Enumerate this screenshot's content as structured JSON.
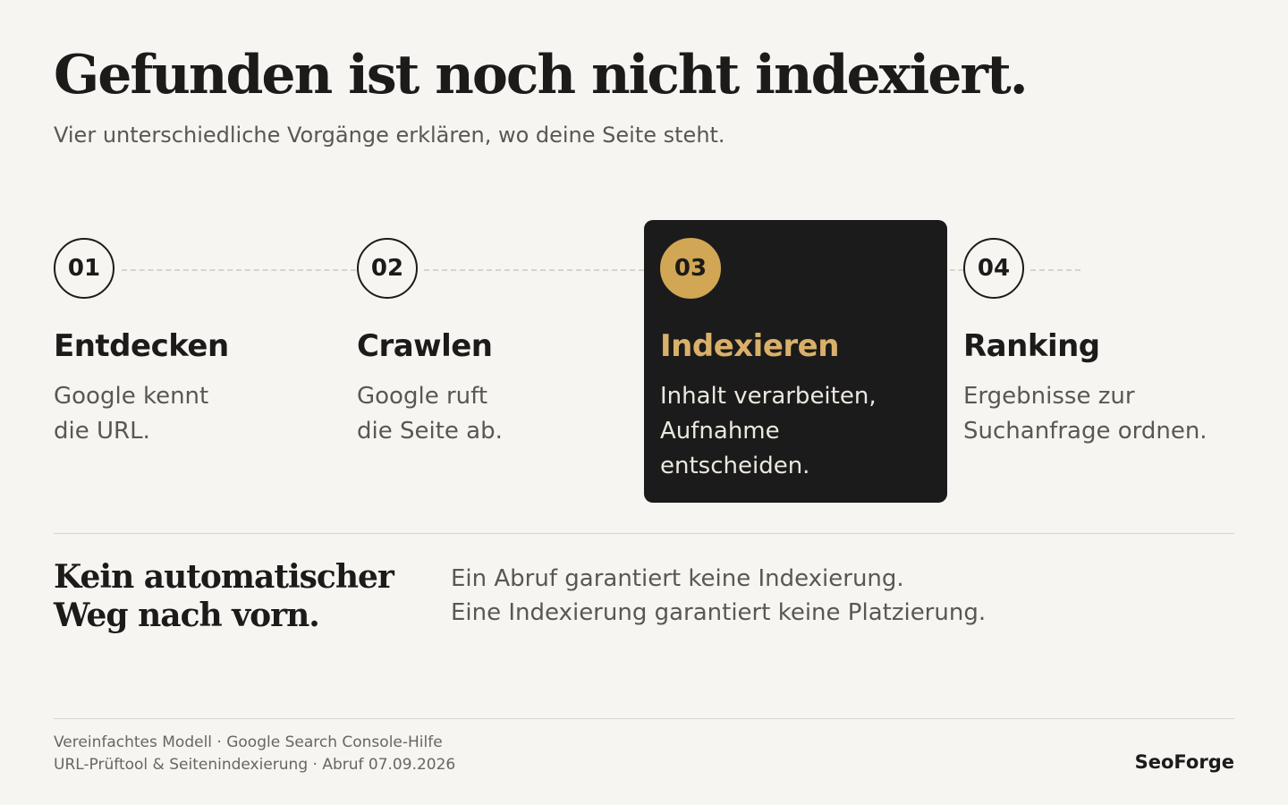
{
  "header": {
    "title": "Gefunden ist noch nicht indexiert.",
    "subtitle": "Vier unterschiedliche Vorgänge erklären, wo deine Seite steht."
  },
  "steps": [
    {
      "number": "01",
      "title": "Entdecken",
      "desc_lines": [
        "Google kennt",
        "die URL."
      ],
      "active": false
    },
    {
      "number": "02",
      "title": "Crawlen",
      "desc_lines": [
        "Google ruft",
        "die Seite ab."
      ],
      "active": false
    },
    {
      "number": "03",
      "title": "Indexieren",
      "desc_lines": [
        "Inhalt verarbeiten,",
        "Aufnahme",
        "entscheiden."
      ],
      "active": true
    },
    {
      "number": "04",
      "title": "Ranking",
      "desc_lines": [
        "Ergebnisse zur",
        "Suchanfrage ordnen."
      ],
      "active": false
    }
  ],
  "conclusion": {
    "title_lines": [
      "Kein automatischer",
      "Weg nach vorn."
    ],
    "text_lines": [
      "Ein Abruf garantiert keine Indexierung.",
      "Eine Indexierung garantiert keine Platzierung."
    ]
  },
  "footer": {
    "source_lines": [
      "Vereinfachtes Modell · Google Search Console-Hilfe",
      "URL-Prüftool & Seitenindexierung · Abruf 07.09.2026"
    ],
    "brand": "SeoForge"
  },
  "colors": {
    "background": "#f6f5f2",
    "active_card": "#1b1b1b",
    "accent_gold": "#d1a755",
    "text": "#1c1b19",
    "muted_text": "#5b5750"
  }
}
